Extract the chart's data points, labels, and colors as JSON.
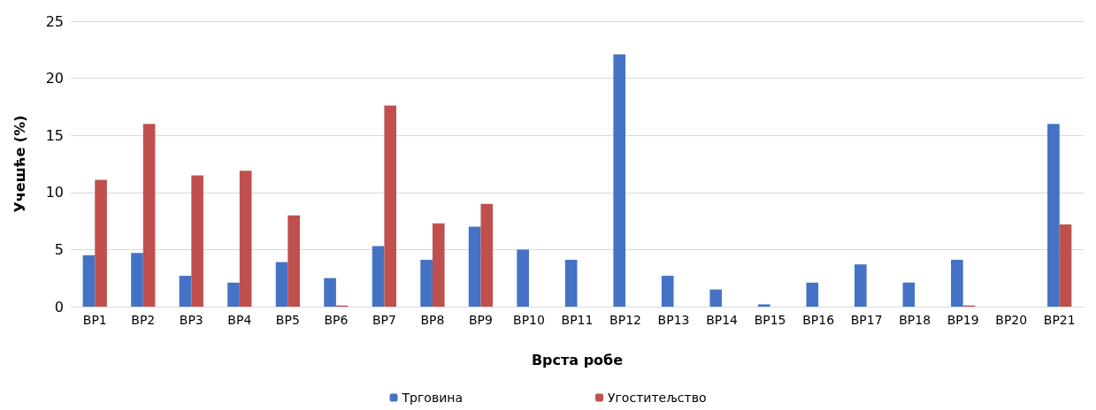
{
  "chart_data": {
    "type": "bar",
    "xlabel": "Врста робе",
    "ylabel": "Учешће (%)",
    "categories": [
      "ВР1",
      "ВР2",
      "ВР3",
      "ВР4",
      "ВР5",
      "ВР6",
      "ВР7",
      "ВР8",
      "ВР9",
      "ВР10",
      "ВР11",
      "ВР12",
      "ВР13",
      "ВР14",
      "ВР15",
      "ВР16",
      "ВР17",
      "ВР18",
      "ВР19",
      "ВР20",
      "ВР21"
    ],
    "series": [
      {
        "name": "Трговина",
        "color": "#4472c4",
        "values": [
          4.5,
          4.7,
          2.7,
          2.1,
          3.9,
          2.5,
          5.3,
          4.1,
          7.0,
          5.0,
          4.1,
          22.1,
          2.7,
          1.5,
          0.2,
          2.1,
          3.7,
          2.1,
          4.1,
          0,
          16.0
        ]
      },
      {
        "name": "Угоститељство",
        "color": "#c0504d",
        "values": [
          11.1,
          16.0,
          11.5,
          11.9,
          8.0,
          0.1,
          17.6,
          7.3,
          9.0,
          0,
          0,
          0,
          0,
          0,
          0,
          0,
          0,
          0,
          0.1,
          0,
          7.2
        ]
      }
    ],
    "ylim": [
      0,
      25
    ],
    "yticks": [
      0,
      5,
      10,
      15,
      20,
      25
    ],
    "grid": "y",
    "legend": "bottom"
  }
}
